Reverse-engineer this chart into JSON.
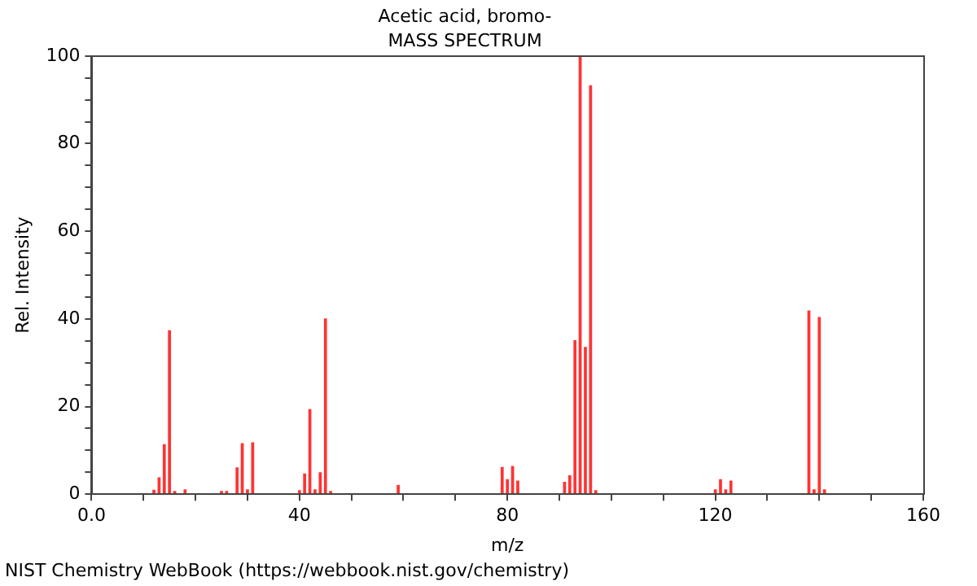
{
  "chart_data": {
    "type": "bar",
    "title": "Acetic acid, bromo-",
    "subtitle": "MASS SPECTRUM",
    "xlabel": "m/z",
    "ylabel": "Rel. Intensity",
    "x": [
      12,
      13,
      14,
      15,
      16,
      18,
      25,
      26,
      28,
      29,
      30,
      31,
      40,
      41,
      42,
      43,
      44,
      45,
      46,
      59,
      79,
      80,
      81,
      82,
      91,
      92,
      93,
      94,
      95,
      96,
      97,
      120,
      121,
      122,
      123,
      138,
      139,
      140,
      141
    ],
    "values": [
      0.9,
      3.7,
      11.3,
      37.3,
      0.6,
      1,
      0.6,
      0.6,
      6,
      11.5,
      1,
      11.7,
      0.8,
      4.6,
      19.3,
      1,
      4.9,
      40,
      0.6,
      2,
      6.1,
      3.3,
      6.3,
      3,
      2.7,
      4.2,
      35,
      100,
      33.5,
      93.2,
      0.8,
      1,
      3.3,
      1,
      3,
      41.8,
      1,
      40.3,
      1
    ],
    "color": "#ff3333",
    "xlim": [
      0,
      160
    ],
    "xticks": [
      {
        "value": 0,
        "label": "0.0"
      },
      {
        "value": 10,
        "label": null
      },
      {
        "value": 20,
        "label": null
      },
      {
        "value": 30,
        "label": null
      },
      40,
      {
        "value": 50,
        "label": null
      },
      {
        "value": 60,
        "label": null
      },
      {
        "value": 70,
        "label": null
      },
      80,
      {
        "value": 90,
        "label": null
      },
      {
        "value": 100,
        "label": null
      },
      {
        "value": 110,
        "label": null
      },
      120,
      {
        "value": 130,
        "label": null
      },
      {
        "value": 140,
        "label": null
      },
      {
        "value": 150,
        "label": null
      },
      160
    ],
    "ylim": [
      0,
      100
    ],
    "yticks": [
      0,
      {
        "value": 5,
        "label": null
      },
      {
        "value": 10,
        "label": null
      },
      {
        "value": 15,
        "label": null
      },
      20,
      {
        "value": 25,
        "label": null
      },
      {
        "value": 30,
        "label": null
      },
      {
        "value": 35,
        "label": null
      },
      40,
      {
        "value": 45,
        "label": null
      },
      {
        "value": 50,
        "label": null
      },
      {
        "value": 55,
        "label": null
      },
      60,
      {
        "value": 65,
        "label": null
      },
      {
        "value": 70,
        "label": null
      },
      {
        "value": 75,
        "label": null
      },
      80,
      {
        "value": 85,
        "label": null
      },
      {
        "value": 90,
        "label": null
      },
      {
        "value": 95,
        "label": null
      },
      100
    ],
    "annotations": [
      "NIST Chemistry WebBook (https://webbook.nist.gov/chemistry)"
    ]
  }
}
